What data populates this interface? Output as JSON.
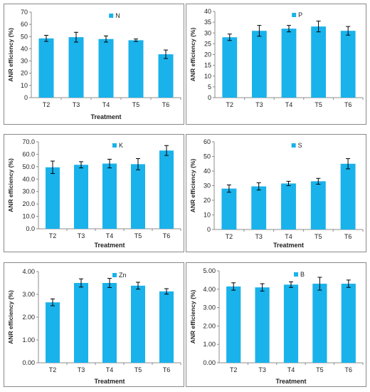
{
  "colors": {
    "bar": "#1ab2eb",
    "axis": "#8c8c8c",
    "error": "#000000",
    "border": "#8a8a8a"
  },
  "chart_data": [
    {
      "type": "bar",
      "legend": "N",
      "xlabel": "Treatment",
      "ylabel": "ANR efficiency (%)",
      "categories": [
        "T2",
        "T3",
        "T4",
        "T5",
        "T6"
      ],
      "values": [
        48.5,
        49.5,
        48,
        47,
        35.5
      ],
      "errors": [
        2.5,
        4,
        2.5,
        1,
        3.5
      ],
      "ylim": [
        0,
        70
      ],
      "ystep": 10,
      "decimals": 0
    },
    {
      "type": "bar",
      "legend": "P",
      "xlabel": "",
      "ylabel": "ANR efficiency (%)",
      "categories": [
        "T2",
        "T3",
        "T4",
        "T5",
        "T6"
      ],
      "values": [
        28,
        31,
        32,
        33,
        31
      ],
      "errors": [
        1.5,
        2.5,
        1.5,
        2.5,
        2
      ],
      "ylim": [
        0,
        40
      ],
      "ystep": 5,
      "decimals": 0
    },
    {
      "type": "bar",
      "legend": "K",
      "xlabel": "Treatment",
      "ylabel": "ANR efficiency (%)",
      "categories": [
        "T2",
        "T3",
        "T4",
        "T5",
        "T6"
      ],
      "values": [
        49.5,
        51.5,
        52.5,
        52,
        63
      ],
      "errors": [
        5,
        2.5,
        3.5,
        4.5,
        4
      ],
      "ylim": [
        0,
        70
      ],
      "ystep": 10,
      "decimals": 1
    },
    {
      "type": "bar",
      "legend": "S",
      "xlabel": "Treatment",
      "ylabel": "ANR efficiency (%)",
      "categories": [
        "T2",
        "T3",
        "T4",
        "T5",
        "T6"
      ],
      "values": [
        28,
        29.5,
        31.5,
        33,
        45
      ],
      "errors": [
        2.5,
        2.5,
        1.5,
        2,
        3.5
      ],
      "ylim": [
        0,
        60
      ],
      "ystep": 10,
      "decimals": 0
    },
    {
      "type": "bar",
      "legend": "Zn",
      "xlabel": "Treatment",
      "ylabel": "ANR efficiency (%)",
      "categories": [
        "T2",
        "T3",
        "T4",
        "T5",
        "T6"
      ],
      "values": [
        2.65,
        3.5,
        3.5,
        3.38,
        3.13
      ],
      "errors": [
        0.15,
        0.18,
        0.2,
        0.15,
        0.12
      ],
      "ylim": [
        0,
        4
      ],
      "ystep": 1,
      "decimals": 2
    },
    {
      "type": "bar",
      "legend": "B",
      "xlabel": "Treatment",
      "ylabel": "ANR efficiency (%)",
      "categories": [
        "T2",
        "T3",
        "T4",
        "T5",
        "T6"
      ],
      "values": [
        4.15,
        4.1,
        4.25,
        4.3,
        4.3
      ],
      "errors": [
        0.2,
        0.2,
        0.15,
        0.35,
        0.2
      ],
      "ylim": [
        0,
        5
      ],
      "ystep": 1,
      "decimals": 2
    }
  ]
}
